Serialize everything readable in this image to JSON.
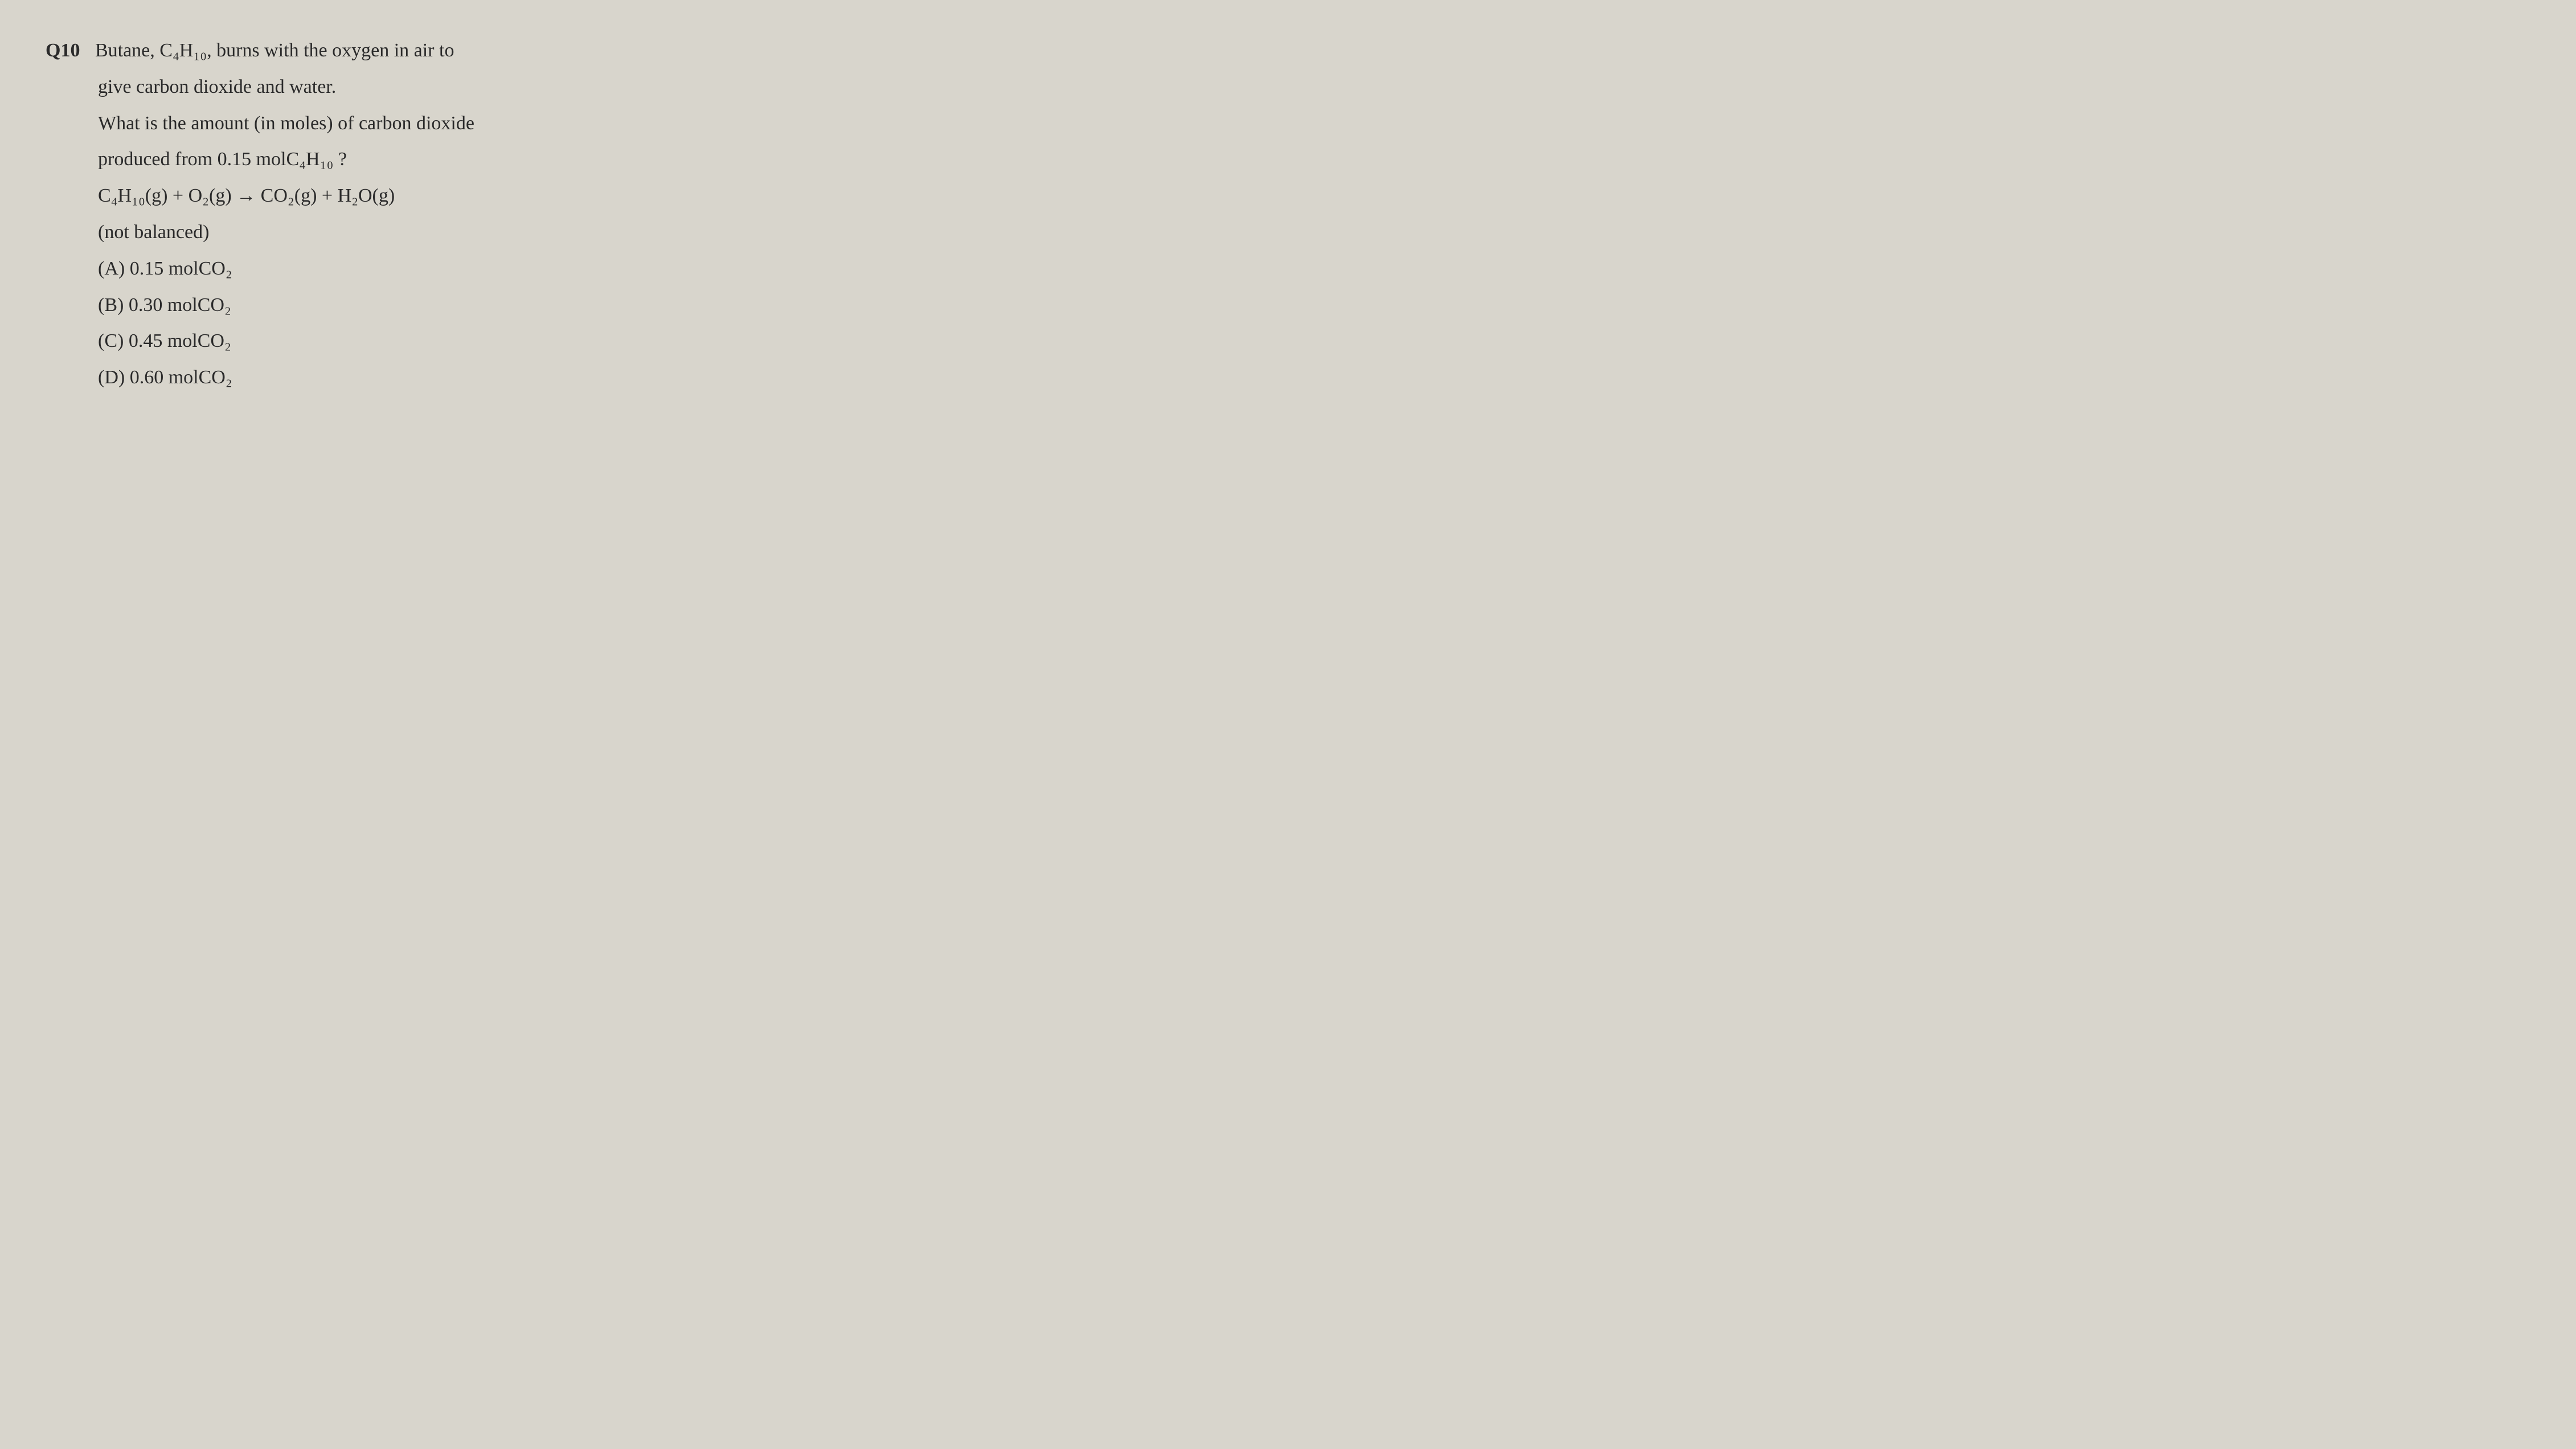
{
  "question": {
    "number": "Q10",
    "line1_a": "Butane, ",
    "line1_formula": "C₄H₁₀",
    "line1_b": ", burns with the oxygen in air to",
    "line2": "give carbon dioxide and water.",
    "line3": "What is the amount (in moles) of carbon dioxide",
    "line4_a": "produced from ",
    "line4_val": "0.15 mol",
    "line4_formula": "C₄H₁₀",
    "line4_b": " ?",
    "equation": "C₄H₁₀(g)  +  O₂(g)  →  CO₂(g)  +  H₂O(g)",
    "note": "(not balanced)"
  },
  "options": {
    "A_label": "(A) ",
    "A_val": "0.15 molCO₂",
    "B_label": "(B) ",
    "B_val": "0.30 molCO₂",
    "C_label": "(C) ",
    "C_val": "0.45 molCO₂",
    "D_label": "(D) ",
    "D_val": "0.60 molCO₂"
  },
  "style": {
    "background": "#d8d5cc",
    "text_color": "#2a2a2a",
    "font_size_pt": 26,
    "font_family": "Georgia, Times New Roman, serif"
  }
}
